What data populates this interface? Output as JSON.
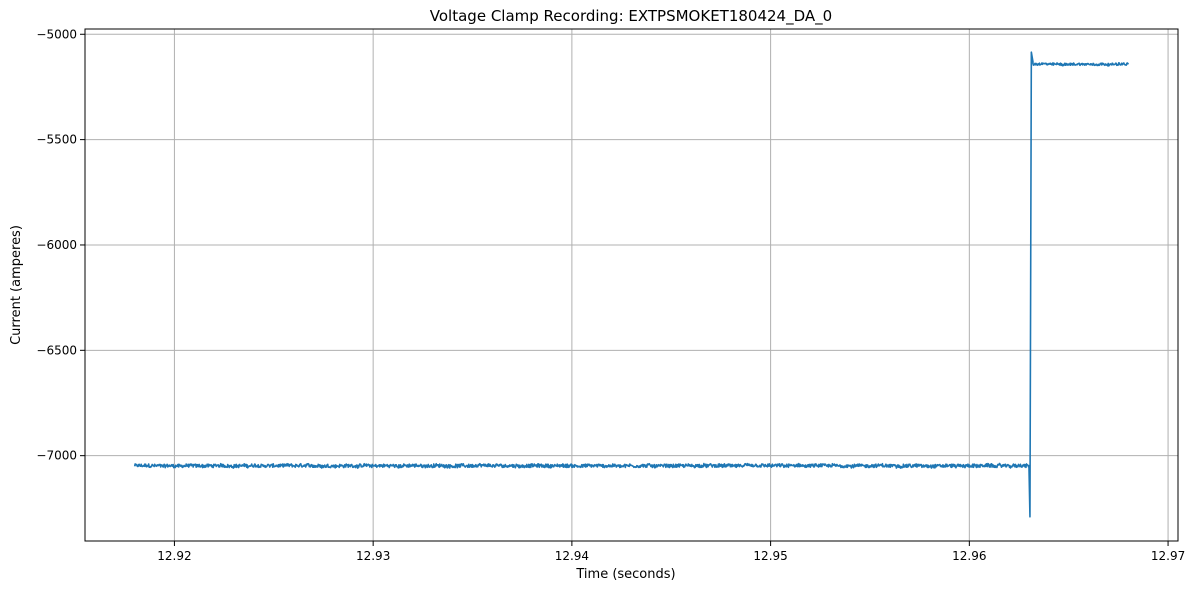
{
  "chart_data": {
    "type": "line",
    "title": "Voltage Clamp Recording: EXTPSMOKET180424_DA_0",
    "xlabel": "Time (seconds)",
    "ylabel": "Current (amperes)",
    "xlim": [
      12.9155,
      12.9705
    ],
    "ylim": [
      -7405,
      -4975
    ],
    "x_ticks": [
      12.92,
      12.93,
      12.94,
      12.95,
      12.96,
      12.97
    ],
    "x_tick_labels": [
      "12.92",
      "12.93",
      "12.94",
      "12.95",
      "12.96",
      "12.97"
    ],
    "y_ticks": [
      -5000,
      -5500,
      -6000,
      -6500,
      -7000
    ],
    "y_tick_labels": [
      "−5000",
      "−5500",
      "−6000",
      "−6500",
      "−7000"
    ],
    "grid": true,
    "line_color": "#1f77b4",
    "series": [
      {
        "segments": [
          {
            "x_start": 12.918,
            "x_end": 12.963,
            "baseline": -7048,
            "noise": 10
          },
          {
            "x_start": 12.9632,
            "x_end": 12.968,
            "baseline": -5142,
            "noise": 7
          }
        ],
        "transient": [
          {
            "x": 12.963,
            "y": -7048
          },
          {
            "x": 12.96305,
            "y": -7290
          },
          {
            "x": 12.96312,
            "y": -5085
          },
          {
            "x": 12.9632,
            "y": -5130
          }
        ]
      }
    ]
  }
}
